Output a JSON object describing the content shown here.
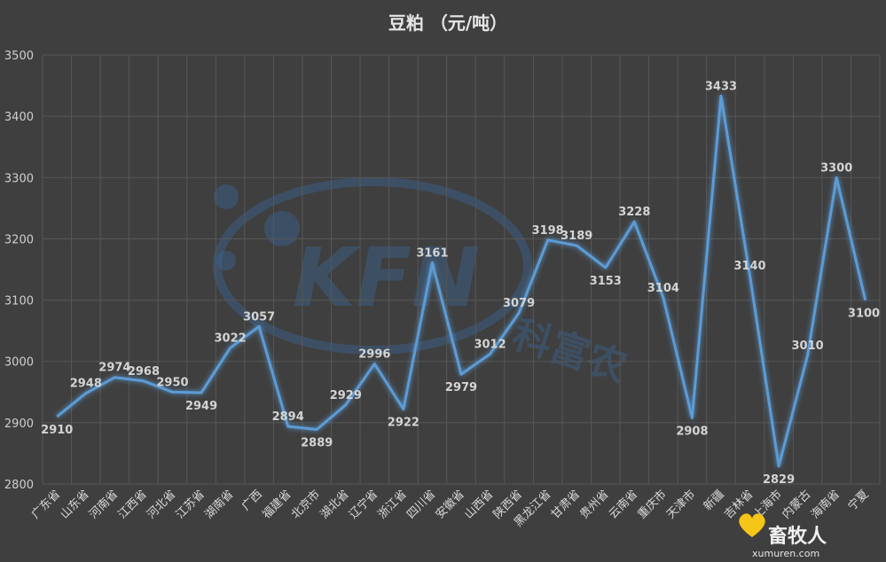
{
  "chart_data": {
    "type": "line",
    "title": "豆粕  （元/吨）",
    "xlabel": "",
    "ylabel": "",
    "ylim": [
      2800,
      3500
    ],
    "yticks": [
      2800,
      2900,
      3000,
      3100,
      3200,
      3300,
      3400,
      3500
    ],
    "grid": true,
    "legend": "none",
    "color": "#5b9bd5",
    "categories": [
      "广东省",
      "山东省",
      "河南省",
      "江西省",
      "河北省",
      "江苏省",
      "湖南省",
      "广西",
      "福建省",
      "北京市",
      "湖北省",
      "辽宁省",
      "浙江省",
      "四川省",
      "安徽省",
      "山西省",
      "陕西省",
      "黑龙江省",
      "甘肃省",
      "贵州省",
      "云南省",
      "重庆市",
      "天津市",
      "新疆",
      "吉林省",
      "上海市",
      "内蒙古",
      "海南省",
      "宁夏"
    ],
    "series": [
      {
        "values": [
          2910,
          2948,
          2974,
          2968,
          2950,
          2949,
          3022,
          3057,
          2894,
          2889,
          2929,
          2996,
          2922,
          3161,
          2979,
          3012,
          3079,
          3198,
          3189,
          3153,
          3228,
          3104,
          2908,
          3433,
          3140,
          2829,
          3010,
          3300,
          3100
        ]
      }
    ]
  },
  "watermark": {
    "text": "KFN",
    "subtext": "科富农"
  },
  "logo": {
    "text": "畜牧人",
    "url": "xumuren.com"
  }
}
